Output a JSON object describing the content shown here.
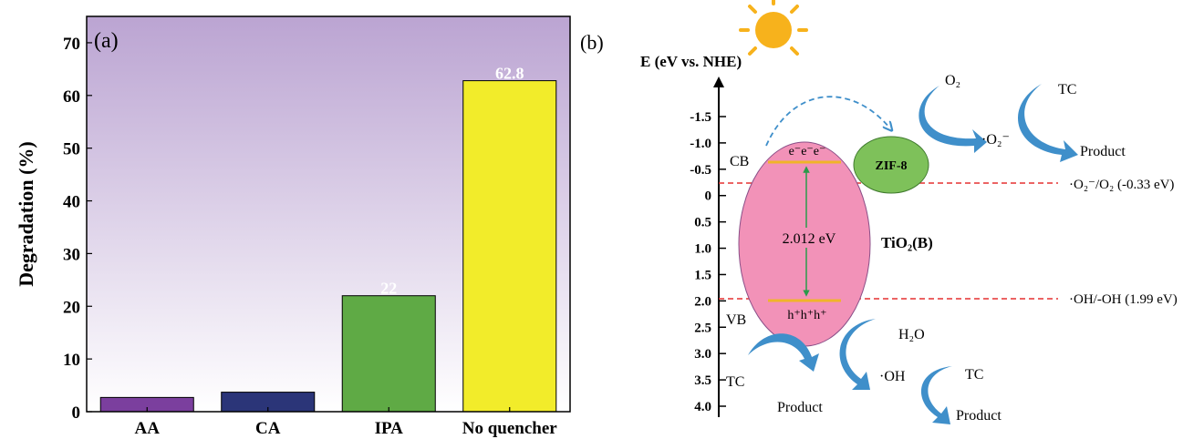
{
  "panel_a": {
    "label": "(a)",
    "chart_data": {
      "type": "bar",
      "categories": [
        "AA",
        "CA",
        "IPA",
        "No quencher"
      ],
      "values": [
        2.7,
        3.7,
        22,
        62.8
      ],
      "data_labels": [
        "",
        "",
        "22",
        "62.8"
      ],
      "ylabel": "Degradation (%)",
      "xlabel": "",
      "ylim": [
        0,
        75
      ],
      "yticks": [
        0,
        10,
        20,
        30,
        40,
        50,
        60,
        70
      ],
      "grid": false,
      "colors": {
        "AA": "#7b3f9e",
        "CA": "#2b3578",
        "IPA": "#5faa45",
        "No quencher": "#f2ec2a",
        "background_top": "#bba4d2",
        "background_bottom": "#ffffff"
      }
    }
  },
  "panel_b": {
    "label": "(b)",
    "axis_title": "E (eV vs. NHE)",
    "axis_ticks": [
      "-1.5",
      "-1.0",
      "-0.5",
      "0",
      "0.5",
      "1.0",
      "1.5",
      "2.0",
      "2.5",
      "3.0",
      "3.5",
      "4.0"
    ],
    "cb_label": "CB",
    "vb_label": "VB",
    "electrons": "e⁻e⁻e⁻",
    "holes": "h⁺h⁺h⁺",
    "band_gap": "2.012 eV",
    "semiconductor": "TiO₂(B)",
    "cocatalyst": "ZIF-8",
    "o2": "O₂",
    "superoxide": "·O₂⁻",
    "tc_top": "TC",
    "product_top": "Product",
    "redox_o2": "·O₂⁻/O₂ (-0.33 eV)",
    "redox_oh": "·OH/-OH (1.99 eV)",
    "h2o": "H₂O",
    "oh_radical": "·OH",
    "tc_vb": "TC",
    "product_vb": "Product",
    "tc_oh": "TC",
    "product_oh": "Product",
    "colors": {
      "ellipse": "#f292b8",
      "zif8": "#7ec15a",
      "arrow": "#3f8fca",
      "redox_line": "#e53030",
      "band_edge": "#f0b429",
      "gap_arrow": "#2a9a4a",
      "sun": "#f7b21c"
    }
  }
}
